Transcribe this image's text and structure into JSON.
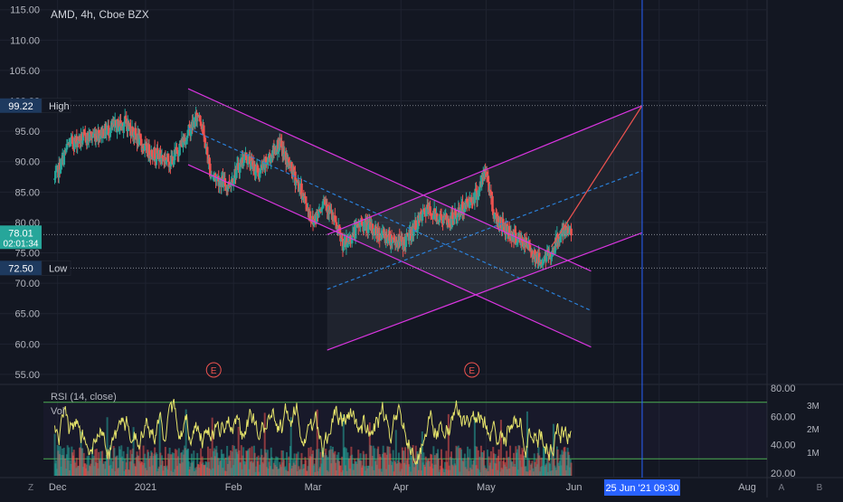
{
  "chart_data": {
    "type": "candlestick",
    "title": "AMD, 4h, Cboe BZX",
    "price_axis": {
      "ticks": [
        "55.00",
        "60.00",
        "65.00",
        "70.00",
        "75.00",
        "80.00",
        "85.00",
        "90.00",
        "95.00",
        "100.00",
        "105.00",
        "110.00",
        "115.00"
      ],
      "range": [
        53.5,
        116
      ]
    },
    "time_axis": {
      "labels": [
        "Dec",
        "2021",
        "Feb",
        "Mar",
        "Apr",
        "May",
        "Jun",
        "Aug"
      ]
    },
    "price_labels": {
      "high": {
        "value": "99.22",
        "text": "High"
      },
      "last": {
        "value": "78.01",
        "countdown": "02:01:34"
      },
      "low": {
        "value": "72.50",
        "text": "Low"
      }
    },
    "cursor_label": "25 Jun '21   09:30",
    "earnings_marker": "E",
    "indicator": {
      "rsi_title": "RSI (14, close)",
      "vol_title": "Vol",
      "rsi_ticks": [
        "20.00",
        "40.00",
        "60.00",
        "80.00"
      ],
      "vol_ticks": [
        "1M",
        "2M",
        "3M"
      ],
      "rsi_bands": [
        70,
        30
      ]
    },
    "footer_letters": {
      "left": "Z",
      "right_a": "A",
      "right_b": "B"
    },
    "colors": {
      "background": "#131722",
      "grid": "#1f2330",
      "up": "#26a69a",
      "down": "#ef5350",
      "channel": "#d935e0",
      "midline": "#2a7fd8",
      "rsi": "#e5e36a",
      "rsi_band": "#4caf50",
      "cursor": "#2962ff",
      "label_bg": "#1e3a5f",
      "last_price": "#26a69a"
    },
    "series_anchors": [
      {
        "t": "2020-11-30",
        "p": 87.0
      },
      {
        "t": "2020-12-05",
        "p": 93.0
      },
      {
        "t": "2020-12-15",
        "p": 94.5
      },
      {
        "t": "2020-12-25",
        "p": 96.5
      },
      {
        "t": "2021-01-01",
        "p": 92.0
      },
      {
        "t": "2021-01-10",
        "p": 90.0
      },
      {
        "t": "2021-01-15",
        "p": 94.0
      },
      {
        "t": "2021-01-20",
        "p": 98.0
      },
      {
        "t": "2021-01-24",
        "p": 88.0
      },
      {
        "t": "2021-01-30",
        "p": 86.0
      },
      {
        "t": "2021-02-05",
        "p": 91.0
      },
      {
        "t": "2021-02-10",
        "p": 88.0
      },
      {
        "t": "2021-02-17",
        "p": 93.0
      },
      {
        "t": "2021-02-25",
        "p": 85.0
      },
      {
        "t": "2021-03-01",
        "p": 80.0
      },
      {
        "t": "2021-03-05",
        "p": 84.0
      },
      {
        "t": "2021-03-12",
        "p": 76.0
      },
      {
        "t": "2021-03-18",
        "p": 80.0
      },
      {
        "t": "2021-03-25",
        "p": 78.0
      },
      {
        "t": "2021-04-02",
        "p": 76.5
      },
      {
        "t": "2021-04-10",
        "p": 82.0
      },
      {
        "t": "2021-04-18",
        "p": 80.0
      },
      {
        "t": "2021-04-24",
        "p": 83.0
      },
      {
        "t": "2021-04-28",
        "p": 85.0
      },
      {
        "t": "2021-05-01",
        "p": 88.5
      },
      {
        "t": "2021-05-04",
        "p": 81.0
      },
      {
        "t": "2021-05-10",
        "p": 78.0
      },
      {
        "t": "2021-05-16",
        "p": 76.0
      },
      {
        "t": "2021-05-20",
        "p": 73.5
      },
      {
        "t": "2021-05-24",
        "p": 75.0
      },
      {
        "t": "2021-05-27",
        "p": 78.0
      },
      {
        "t": "2021-05-31",
        "p": 78.5
      }
    ],
    "drawings": {
      "descending_channel_upper": [
        {
          "t": "2021-01-16",
          "p": 102.0
        },
        {
          "t": "2021-06-07",
          "p": 72.0
        }
      ],
      "descending_channel_lower": [
        {
          "t": "2021-01-16",
          "p": 89.5
        },
        {
          "t": "2021-06-07",
          "p": 59.5
        }
      ],
      "descending_channel_mid": [
        {
          "t": "2021-01-16",
          "p": 95.5
        },
        {
          "t": "2021-06-07",
          "p": 65.5
        }
      ],
      "ascending_channel_upper": [
        {
          "t": "2021-03-06",
          "p": 78.0
        },
        {
          "t": "2021-06-25",
          "p": 99.22
        }
      ],
      "ascending_channel_lower": [
        {
          "t": "2021-03-06",
          "p": 59.0
        },
        {
          "t": "2021-06-25",
          "p": 78.3
        }
      ],
      "ascending_channel_mid": [
        {
          "t": "2021-03-06",
          "p": 69.0
        },
        {
          "t": "2021-06-25",
          "p": 88.5
        }
      ],
      "target_line": [
        {
          "t": "2021-05-24",
          "p": 76.0
        },
        {
          "t": "2021-06-25",
          "p": 99.22
        }
      ]
    },
    "earnings_dates": [
      "2021-01-25",
      "2021-04-26"
    ],
    "cursor_date": "2021-06-25"
  }
}
